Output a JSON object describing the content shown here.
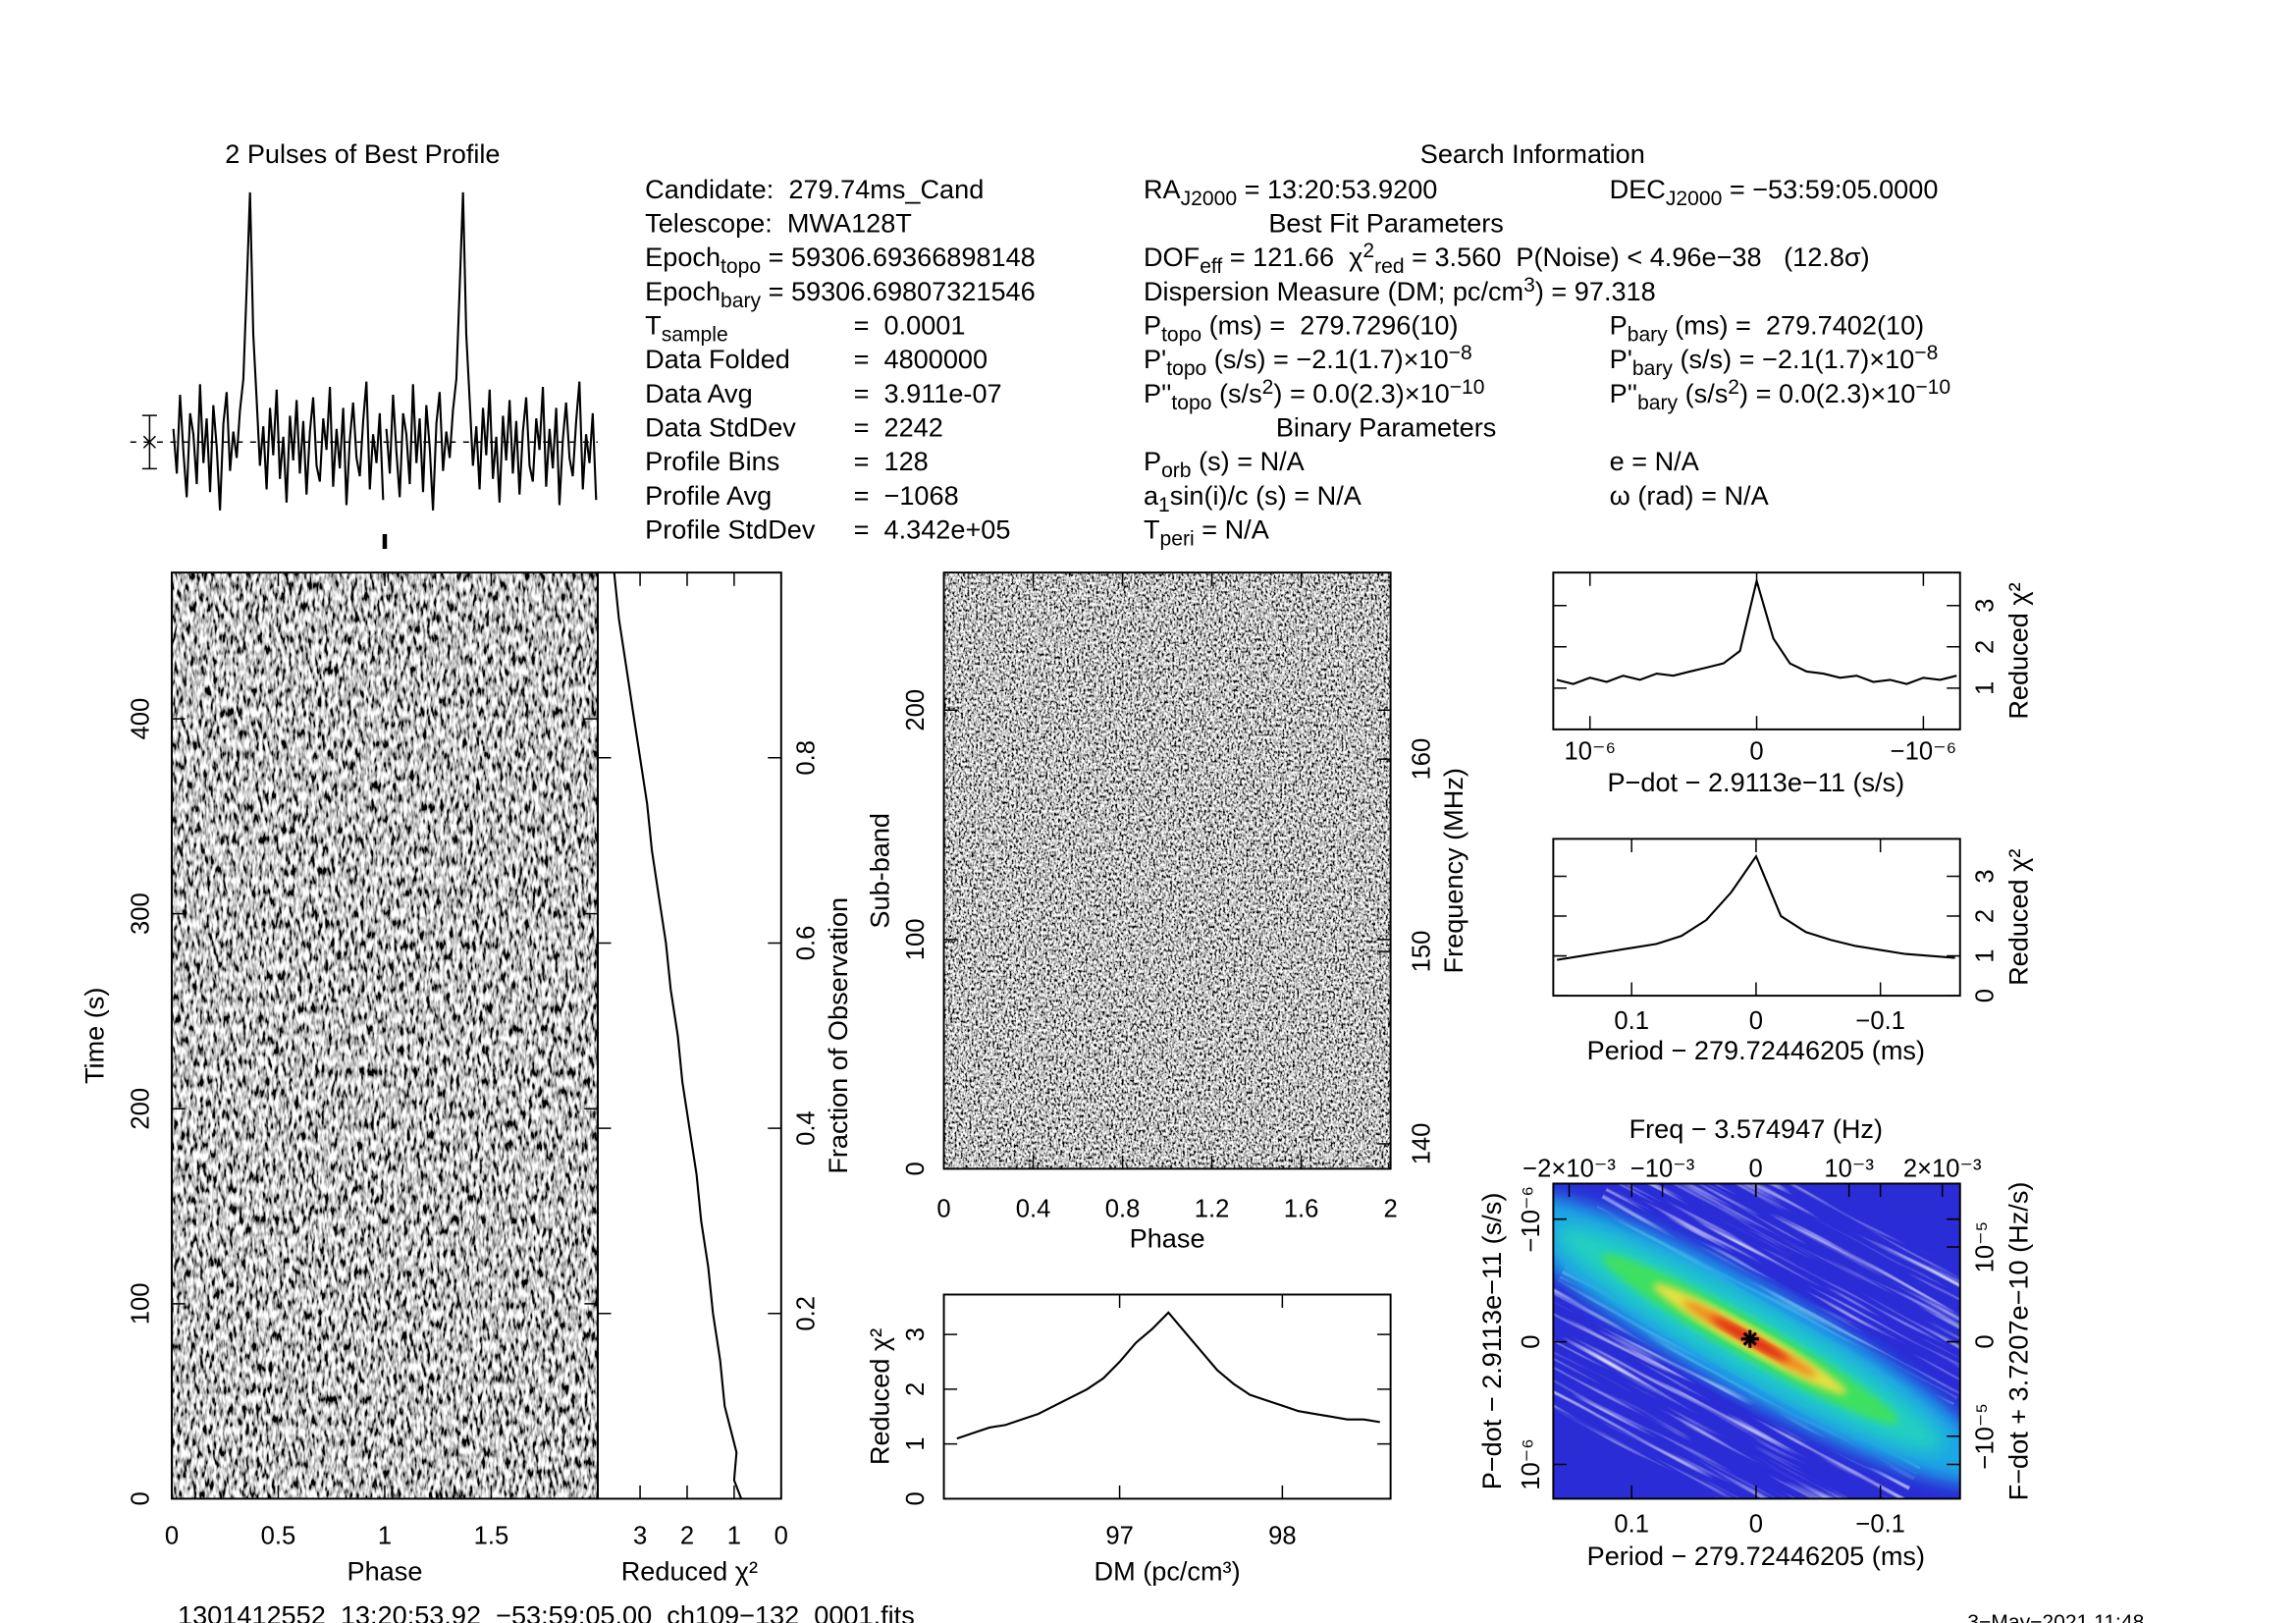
{
  "info": {
    "title": "Search Information",
    "col1": [
      {
        "label": [
          {
            "t": "Candidate:  279.74ms_Cand"
          }
        ]
      },
      {
        "label": [
          {
            "t": "Telescope:  MWA128T"
          }
        ]
      },
      {
        "label": [
          {
            "t": "Epoch"
          },
          {
            "sub": "topo"
          },
          {
            "t": " = 59306.69366898148"
          }
        ]
      },
      {
        "label": [
          {
            "t": "Epoch"
          },
          {
            "sub": "bary"
          },
          {
            "t": " = 59306.69807321546"
          }
        ]
      },
      {
        "label": [
          {
            "t": "T"
          },
          {
            "sub": "sample"
          }
        ],
        "value": "=  0.0001"
      },
      {
        "label": [
          {
            "t": "Data Folded"
          }
        ],
        "value": "=  4800000"
      },
      {
        "label": [
          {
            "t": "Data Avg"
          }
        ],
        "value": "=  3.911e-07"
      },
      {
        "label": [
          {
            "t": "Data StdDev"
          }
        ],
        "value": "=  2242"
      },
      {
        "label": [
          {
            "t": "Profile Bins"
          }
        ],
        "value": "=  128"
      },
      {
        "label": [
          {
            "t": "Profile Avg"
          }
        ],
        "value": "=  −1068"
      },
      {
        "label": [
          {
            "t": "Profile StdDev"
          }
        ],
        "value": "=  4.342e+05"
      }
    ],
    "col2": [
      [
        {
          "t": "RA"
        },
        {
          "sub": "J2000"
        },
        {
          "t": " = 13:20:53.9200"
        }
      ],
      [
        {
          "t": "Best Fit Parameters"
        }
      ],
      [
        {
          "t": "DOF"
        },
        {
          "sub": "eff"
        },
        {
          "t": " = 121.66  χ"
        },
        {
          "sup": "2"
        },
        {
          "sub": "red"
        },
        {
          "t": " = 3.560  P(Noise) < 4.96e−38   (12.8σ)"
        }
      ],
      [
        {
          "t": "Dispersion Measure (DM; pc/cm"
        },
        {
          "sup": "3"
        },
        {
          "t": ") = 97.318"
        }
      ],
      [
        {
          "t": "P"
        },
        {
          "sub": "topo"
        },
        {
          "t": " (ms) =  279.7296(10)"
        }
      ],
      [
        {
          "t": "P'"
        },
        {
          "sub": "topo"
        },
        {
          "t": " (s/s) = −2.1(1.7)×10"
        },
        {
          "sup": "−8"
        }
      ],
      [
        {
          "t": "P''"
        },
        {
          "sub": "topo"
        },
        {
          "t": " (s/s"
        },
        {
          "sup": "2"
        },
        {
          "t": ") = 0.0(2.3)×10"
        },
        {
          "sup": "−10"
        }
      ],
      [
        {
          "t": "Binary Parameters"
        }
      ],
      [
        {
          "t": "P"
        },
        {
          "sub": "orb"
        },
        {
          "t": " (s) = N/A"
        }
      ],
      [
        {
          "t": "a"
        },
        {
          "sub": "1"
        },
        {
          "t": "sin(i)/c (s) = N/A"
        }
      ],
      [
        {
          "t": "T"
        },
        {
          "sub": "peri"
        },
        {
          "t": " = N/A"
        }
      ]
    ],
    "col3": [
      [
        {
          "t": "DEC"
        },
        {
          "sub": "J2000"
        },
        {
          "t": " = −53:59:05.0000"
        }
      ],
      [
        {
          "t": "P"
        },
        {
          "sub": "bary"
        },
        {
          "t": " (ms) =  279.7402(10)"
        }
      ],
      [
        {
          "t": "P'"
        },
        {
          "sub": "bary"
        },
        {
          "t": " (s/s) = −2.1(1.7)×10"
        },
        {
          "sup": "−8"
        }
      ],
      [
        {
          "t": "P''"
        },
        {
          "sub": "bary"
        },
        {
          "t": " (s/s"
        },
        {
          "sup": "2"
        },
        {
          "t": ") = 0.0(2.3)×10"
        },
        {
          "sup": "−10"
        }
      ],
      [
        {
          "t": "e = N/A"
        }
      ],
      [
        {
          "t": "ω (rad) = N/A"
        }
      ]
    ],
    "filename": "1301412552_13:20:53.92_−53:59:05.00_ch109−132_0001.fits",
    "date": "3−May−2021 11:48"
  },
  "chart_data": [
    {
      "type": "profile",
      "title": "2 Pulses of Best Profile",
      "values": [
        0.5,
        -1.2,
        1.8,
        -0.4,
        -2.1,
        1.1,
        0.3,
        -1.6,
        2.2,
        -0.8,
        0.9,
        -1.9,
        1.4,
        -0.2,
        -2.6,
        0.7,
        1.9,
        -1.1,
        0.4,
        -0.6,
        1.2,
        2.4,
        5.8,
        9.5,
        4.1,
        1.6,
        -0.9,
        0.6,
        -1.8,
        1.3,
        -0.5,
        2.0,
        -1.4,
        0.2,
        -2.3,
        1.0,
        -0.7,
        1.6,
        -1.2,
        0.8,
        -2.0,
        0.4,
        1.7,
        -0.9,
        -1.5,
        0.9,
        -0.3,
        2.1,
        -1.7,
        0.5,
        -1.0,
        1.3,
        -2.4,
        0.1,
        1.5,
        -0.6,
        -1.3,
        0.8,
        2.3,
        -1.8,
        0.3,
        -0.8,
        1.1,
        -2.2
      ]
    },
    {
      "type": "image",
      "xlabel": "Phase",
      "ylabel": "Time (s)",
      "xlim": [
        0,
        2
      ],
      "xticks": [
        0,
        0.5,
        1,
        1.5
      ],
      "ylim": [
        0,
        475
      ],
      "yticks": [
        0,
        100,
        200,
        300,
        400
      ]
    },
    {
      "type": "curve",
      "xlabel": "Reduced χ²",
      "ylabel": "Fraction of Observation",
      "xlim": [
        3.9,
        0
      ],
      "xticks": [
        3,
        2,
        1,
        0
      ],
      "ylim": [
        0,
        1
      ],
      "yticks": [
        0.2,
        0.4,
        0.6,
        0.8
      ],
      "x": [
        0.85,
        1.0,
        0.95,
        1.1,
        1.2,
        1.3,
        1.45,
        1.55,
        1.7,
        1.8,
        1.95,
        2.1,
        2.2,
        2.35,
        2.45,
        2.6,
        2.75,
        2.85,
        3.0,
        3.15,
        3.3,
        3.45,
        3.55
      ],
      "y": [
        0,
        0.02,
        0.05,
        0.08,
        0.1,
        0.15,
        0.2,
        0.25,
        0.3,
        0.35,
        0.4,
        0.45,
        0.5,
        0.55,
        0.6,
        0.65,
        0.7,
        0.75,
        0.8,
        0.85,
        0.9,
        0.95,
        1.0
      ]
    },
    {
      "type": "image",
      "xlabel": "Phase",
      "ylabel": "Sub-band",
      "y2label": "Frequency (MHz)",
      "xlim": [
        0,
        2
      ],
      "xticks": [
        0,
        0.4,
        0.8,
        1.2,
        1.6,
        2
      ],
      "ylim": [
        0,
        260
      ],
      "yticks": [
        0,
        100,
        200
      ],
      "y2lim": [
        138.7,
        169.7
      ],
      "y2ticks": [
        140,
        150,
        160
      ]
    },
    {
      "type": "line",
      "xlabel": "DM (pc/cm³)",
      "ylabel": "Reduced χ²",
      "xlim": [
        95.92,
        98.665
      ],
      "xticks": [
        97,
        98
      ],
      "ylim": [
        0,
        3.73
      ],
      "yticks": [
        0,
        1,
        2,
        3
      ],
      "x": [
        96.0,
        96.1,
        96.2,
        96.3,
        96.4,
        96.5,
        96.6,
        96.7,
        96.8,
        96.9,
        97.0,
        97.1,
        97.2,
        97.3,
        97.4,
        97.5,
        97.6,
        97.7,
        97.8,
        97.9,
        98.0,
        98.1,
        98.2,
        98.3,
        98.4,
        98.5,
        98.6
      ],
      "values": [
        1.1,
        1.2,
        1.3,
        1.35,
        1.45,
        1.55,
        1.7,
        1.85,
        2.0,
        2.2,
        2.5,
        2.85,
        3.1,
        3.4,
        3.05,
        2.7,
        2.35,
        2.1,
        1.9,
        1.8,
        1.7,
        1.6,
        1.55,
        1.5,
        1.45,
        1.45,
        1.4
      ]
    },
    {
      "type": "line",
      "xlabel": "P−dot − 2.9113e−11 (s/s)",
      "ylabel": "Reduced χ²",
      "xlim": [
        1.22e-06,
        -1.22e-06
      ],
      "xticks": [
        {
          "value": 1e-06,
          "label": "10⁻⁶"
        },
        0,
        {
          "value": -1e-06,
          "label": "−10⁻⁶"
        }
      ],
      "ylim": [
        0,
        3.8
      ],
      "yticks": [
        1,
        2,
        3
      ],
      "x": [
        1.2e-06,
        1.1e-06,
        1e-06,
        9e-07,
        8e-07,
        7e-07,
        6e-07,
        5e-07,
        4e-07,
        3e-07,
        2e-07,
        1e-07,
        0,
        -1e-07,
        -2e-07,
        -3e-07,
        -4e-07,
        -5e-07,
        -6e-07,
        -7e-07,
        -8e-07,
        -9e-07,
        -1e-06,
        -1.1e-06,
        -1.2e-06
      ],
      "values": [
        1.2,
        1.1,
        1.25,
        1.15,
        1.3,
        1.2,
        1.35,
        1.3,
        1.4,
        1.5,
        1.6,
        1.9,
        3.6,
        2.2,
        1.6,
        1.4,
        1.35,
        1.25,
        1.3,
        1.15,
        1.2,
        1.1,
        1.25,
        1.2,
        1.3
      ]
    },
    {
      "type": "line",
      "xlabel": "Period − 279.72446205 (ms)",
      "ylabel": "Reduced χ²",
      "xlim": [
        0.163,
        -0.164
      ],
      "xticks": [
        0.1,
        0,
        {
          "value": -0.1,
          "label": "−0.1"
        }
      ],
      "ylim": [
        0,
        3.94
      ],
      "yticks": [
        0,
        1,
        2,
        3
      ],
      "x": [
        0.16,
        0.14,
        0.12,
        0.1,
        0.08,
        0.06,
        0.04,
        0.02,
        0,
        -0.02,
        -0.04,
        -0.06,
        -0.08,
        -0.1,
        -0.12,
        -0.14,
        -0.16
      ],
      "values": [
        0.9,
        1.0,
        1.1,
        1.2,
        1.3,
        1.5,
        1.9,
        2.6,
        3.5,
        2.0,
        1.6,
        1.4,
        1.25,
        1.15,
        1.05,
        1.0,
        0.95
      ]
    },
    {
      "type": "heatmap",
      "title": "Freq − 3.574947 (Hz)",
      "xlabel": "Period − 279.72446205 (ms)",
      "ylabel": "P−dot − 2.9113e−11 (s/s)",
      "y2label": "F−dot + 3.7207e−10 (Hz/s)",
      "xlim": [
        0.163,
        -0.164
      ],
      "xticks": [
        0.1,
        0,
        {
          "value": -0.1,
          "label": "−0.1"
        }
      ],
      "x2lim": [
        -0.00217,
        0.00219
      ],
      "x2ticks": [
        {
          "value": -0.002,
          "label": "−2×10⁻³"
        },
        {
          "value": -0.001,
          "label": "−10⁻³"
        },
        0,
        {
          "value": 0.001,
          "label": "10⁻³"
        },
        {
          "value": 0.002,
          "label": "2×10⁻³"
        }
      ],
      "ylim": [
        1.28e-06,
        -1.29e-06
      ],
      "yticks": [
        {
          "value": -1e-06,
          "label": "−10⁻⁶"
        },
        0,
        {
          "value": 1e-06,
          "label": "10⁻⁶"
        }
      ],
      "y2lim": [
        -1.66e-05,
        1.67e-05
      ],
      "y2ticks": [
        {
          "value": 1e-05,
          "label": "10⁻⁵"
        },
        0,
        {
          "value": -1e-05,
          "label": "−10⁻⁵"
        }
      ]
    }
  ]
}
